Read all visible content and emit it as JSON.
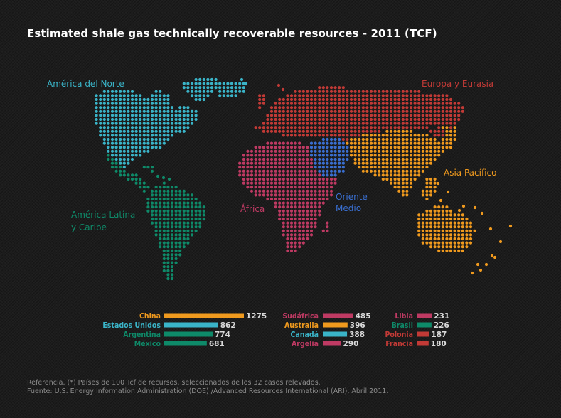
{
  "title": "Estimated shale gas technically recoverable resources - 2011 (TCF)",
  "colors": {
    "america_norte": "#3ab4c8",
    "america_latina": "#0e8a69",
    "europa": "#c23a36",
    "africa": "#bf3a63",
    "oriente": "#3a6fd1",
    "asia": "#f09a1e"
  },
  "regions": {
    "america_norte": "América del Norte",
    "america_latina_1": "América Latina",
    "america_latina_2": "y Caribe",
    "europa": "Europa y Eurasia",
    "africa": "África",
    "oriente_1": "Oriente",
    "oriente_2": "Medio",
    "asia": "Asia Pacífico"
  },
  "chart_data": {
    "type": "bar",
    "unit": "TCF",
    "scale_max": 1275,
    "groups": [
      [
        {
          "name": "China",
          "value": 1275,
          "region": "asia"
        },
        {
          "name": "Estados Unidos",
          "value": 862,
          "region": "america_norte"
        },
        {
          "name": "Argentina",
          "value": 774,
          "region": "america_latina"
        },
        {
          "name": "México",
          "value": 681,
          "region": "america_latina"
        }
      ],
      [
        {
          "name": "Sudáfrica",
          "value": 485,
          "region": "africa"
        },
        {
          "name": "Australia",
          "value": 396,
          "region": "asia"
        },
        {
          "name": "Canadá",
          "value": 388,
          "region": "america_norte"
        },
        {
          "name": "Argelia",
          "value": 290,
          "region": "africa"
        }
      ],
      [
        {
          "name": "Libia",
          "value": 231,
          "region": "africa"
        },
        {
          "name": "Brasil",
          "value": 226,
          "region": "america_latina"
        },
        {
          "name": "Polonia",
          "value": 187,
          "region": "europa"
        },
        {
          "name": "Francia",
          "value": 180,
          "region": "europa"
        }
      ]
    ]
  },
  "footer": {
    "line1": "Referencia. (*) Países de 100 Tcf de recursos, seleccionados de los 32 casos relevados.",
    "line2": "Fuente: U.S. Energy Information Administration (DOE) /Advanced Resources International (ARI), Abril 2011."
  }
}
